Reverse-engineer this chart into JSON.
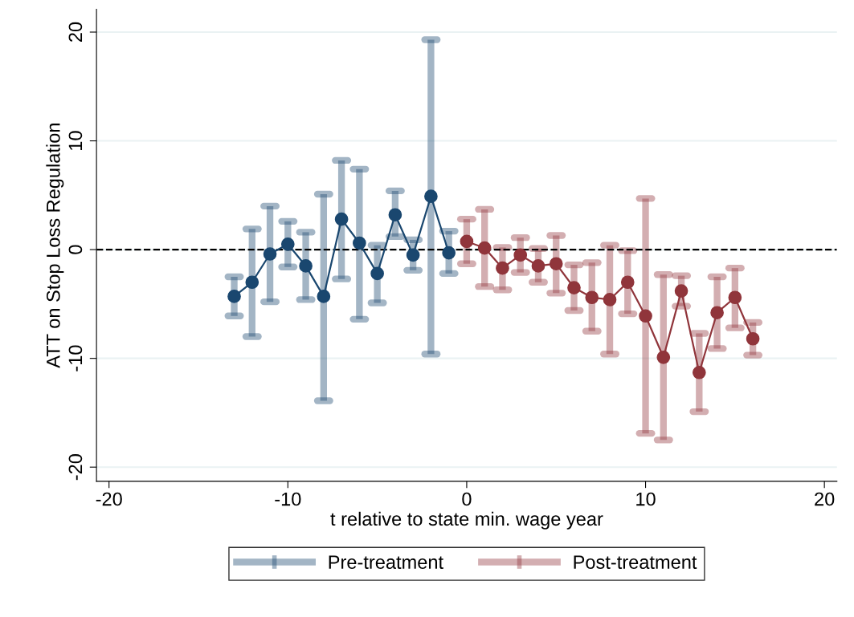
{
  "chart_data": {
    "type": "line",
    "xlabel": "t relative to state min. wage year",
    "ylabel": "ATT on Stop Loss Regulation",
    "xlim": [
      -20.7,
      20.7
    ],
    "xticks": [
      -20,
      -10,
      0,
      10,
      20
    ],
    "ylim": [
      -21.3,
      22.1
    ],
    "yticks": [
      -20,
      -10,
      0,
      10,
      20
    ],
    "grid": "y",
    "legend": "bottom",
    "marker": "circle",
    "line_style": "solid",
    "ref_lines": [
      {
        "axis": "y",
        "value": 0,
        "color": "#000000",
        "line_style": "dashed"
      }
    ],
    "series": [
      {
        "name": "Pre-treatment",
        "color": "#1a476f",
        "x": [
          -13,
          -12,
          -11,
          -10,
          -9,
          -8,
          -7,
          -6,
          -5,
          -4,
          -3,
          -2,
          -1
        ],
        "values": [
          -4.3,
          -3.0,
          -0.4,
          0.5,
          -1.5,
          -4.3,
          2.8,
          0.6,
          -2.2,
          3.2,
          -0.5,
          4.9,
          -0.3
        ],
        "errors": [
          [
            -6.1,
            -2.5
          ],
          [
            -8.0,
            1.9
          ],
          [
            -4.8,
            4.0
          ],
          [
            -1.6,
            2.6
          ],
          [
            -4.6,
            1.6
          ],
          [
            -13.9,
            5.1
          ],
          [
            -2.7,
            8.2
          ],
          [
            -6.4,
            7.4
          ],
          [
            -4.9,
            0.4
          ],
          [
            1.2,
            5.4
          ],
          [
            -1.9,
            0.9
          ],
          [
            -9.6,
            19.3
          ],
          [
            -2.2,
            1.7
          ]
        ]
      },
      {
        "name": "Post-treatment",
        "color": "#90353b",
        "x": [
          0,
          1,
          2,
          3,
          4,
          5,
          6,
          7,
          8,
          9,
          10,
          11,
          12,
          13,
          14,
          15,
          16
        ],
        "values": [
          0.75,
          0.15,
          -1.7,
          -0.5,
          -1.5,
          -1.3,
          -3.5,
          -4.4,
          -4.6,
          -3.0,
          -6.1,
          -9.9,
          -3.8,
          -11.3,
          -5.8,
          -4.4,
          -8.2
        ],
        "errors": [
          [
            -1.3,
            2.8
          ],
          [
            -3.4,
            3.7
          ],
          [
            -3.7,
            0.2
          ],
          [
            -2.1,
            1.1
          ],
          [
            -3.0,
            0.1
          ],
          [
            -4.0,
            1.3
          ],
          [
            -5.6,
            -1.4
          ],
          [
            -7.5,
            -1.2
          ],
          [
            -9.6,
            0.4
          ],
          [
            -5.9,
            -0.1
          ],
          [
            -16.9,
            4.7
          ],
          [
            -17.5,
            -2.3
          ],
          [
            -5.2,
            -2.4
          ],
          [
            -14.9,
            -7.7
          ],
          [
            -9.1,
            -2.5
          ],
          [
            -7.2,
            -1.7
          ],
          [
            -9.7,
            -6.7
          ]
        ]
      }
    ]
  }
}
